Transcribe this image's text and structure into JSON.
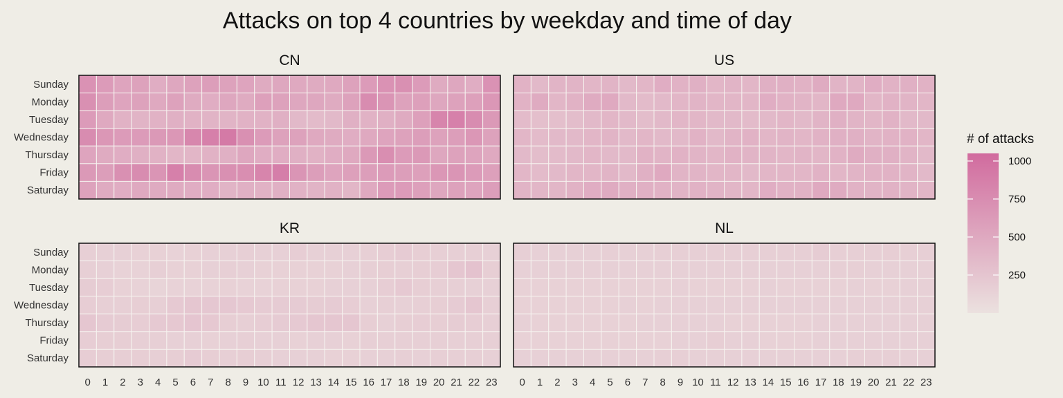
{
  "chart_data": {
    "type": "heatmap",
    "title": "Attacks on top 4 countries by weekday and time of day",
    "y_categories": [
      "Sunday",
      "Monday",
      "Tuesday",
      "Wednesday",
      "Thursday",
      "Friday",
      "Saturday"
    ],
    "x_categories": [
      "0",
      "1",
      "2",
      "3",
      "4",
      "5",
      "6",
      "7",
      "8",
      "9",
      "10",
      "11",
      "12",
      "13",
      "14",
      "15",
      "16",
      "17",
      "18",
      "19",
      "20",
      "21",
      "22",
      "23"
    ],
    "color_scale": {
      "title": "# of attacks",
      "ticks": [
        250,
        500,
        750,
        1000
      ],
      "tick_labels": [
        "250",
        "500",
        "750",
        "1000"
      ],
      "range": [
        0,
        1050
      ],
      "low_color": "#ebe1df",
      "high_color": "#d16b9e"
    },
    "panels": [
      {
        "name": "CN",
        "values": [
          [
            700,
            620,
            540,
            560,
            460,
            520,
            560,
            600,
            560,
            540,
            480,
            520,
            500,
            480,
            500,
            560,
            620,
            700,
            720,
            620,
            480,
            520,
            460,
            700
          ],
          [
            720,
            600,
            540,
            560,
            500,
            560,
            480,
            460,
            520,
            480,
            580,
            560,
            520,
            520,
            480,
            560,
            760,
            680,
            560,
            580,
            520,
            560,
            580,
            660
          ],
          [
            620,
            500,
            420,
            400,
            420,
            440,
            420,
            400,
            400,
            420,
            420,
            440,
            360,
            340,
            360,
            440,
            420,
            440,
            480,
            580,
            820,
            860,
            760,
            640
          ],
          [
            760,
            660,
            620,
            620,
            640,
            660,
            800,
            860,
            920,
            720,
            620,
            560,
            560,
            500,
            480,
            460,
            500,
            540,
            560,
            600,
            560,
            600,
            660,
            560
          ],
          [
            540,
            480,
            460,
            440,
            420,
            380,
            380,
            420,
            440,
            520,
            460,
            460,
            440,
            420,
            460,
            500,
            640,
            740,
            620,
            640,
            520,
            560,
            540,
            500
          ],
          [
            640,
            600,
            720,
            760,
            680,
            860,
            760,
            680,
            720,
            740,
            820,
            880,
            680,
            600,
            540,
            580,
            600,
            620,
            600,
            580,
            660,
            680,
            620,
            580
          ],
          [
            560,
            480,
            460,
            500,
            480,
            480,
            460,
            460,
            400,
            440,
            420,
            440,
            420,
            400,
            420,
            380,
            500,
            620,
            620,
            580,
            520,
            560,
            540,
            600
          ]
        ]
      },
      {
        "name": "US",
        "values": [
          [
            420,
            360,
            400,
            400,
            380,
            400,
            360,
            380,
            460,
            420,
            440,
            380,
            400,
            380,
            440,
            440,
            420,
            480,
            400,
            400,
            460,
            420,
            440,
            420
          ],
          [
            420,
            480,
            380,
            420,
            480,
            500,
            360,
            340,
            360,
            380,
            400,
            380,
            380,
            380,
            460,
            420,
            400,
            380,
            500,
            500,
            380,
            420,
            400,
            380
          ],
          [
            340,
            300,
            300,
            320,
            360,
            380,
            360,
            320,
            360,
            380,
            380,
            360,
            360,
            340,
            360,
            380,
            360,
            400,
            440,
            400,
            380,
            420,
            360,
            360
          ],
          [
            380,
            340,
            360,
            360,
            380,
            400,
            360,
            380,
            360,
            360,
            420,
            360,
            400,
            420,
            380,
            400,
            380,
            420,
            440,
            440,
            400,
            420,
            420,
            380
          ],
          [
            360,
            320,
            340,
            360,
            380,
            360,
            360,
            420,
            400,
            420,
            400,
            380,
            420,
            400,
            400,
            380,
            400,
            380,
            420,
            480,
            440,
            440,
            400,
            360
          ],
          [
            380,
            340,
            360,
            380,
            380,
            400,
            360,
            440,
            500,
            400,
            400,
            380,
            380,
            360,
            380,
            380,
            380,
            420,
            380,
            400,
            420,
            420,
            400,
            360
          ],
          [
            400,
            380,
            380,
            420,
            460,
            480,
            440,
            440,
            420,
            400,
            420,
            400,
            380,
            380,
            460,
            420,
            420,
            500,
            480,
            420,
            400,
            420,
            400,
            380
          ]
        ]
      },
      {
        "name": "KR",
        "values": [
          [
            160,
            150,
            150,
            140,
            140,
            130,
            140,
            150,
            150,
            160,
            150,
            150,
            180,
            150,
            150,
            150,
            160,
            180,
            200,
            170,
            160,
            160,
            160,
            150
          ],
          [
            160,
            150,
            130,
            130,
            160,
            140,
            140,
            150,
            160,
            150,
            140,
            140,
            140,
            140,
            140,
            150,
            160,
            170,
            160,
            170,
            180,
            240,
            280,
            170
          ],
          [
            190,
            180,
            140,
            130,
            120,
            130,
            130,
            130,
            140,
            130,
            130,
            140,
            140,
            140,
            150,
            150,
            150,
            180,
            210,
            170,
            160,
            160,
            150,
            150
          ],
          [
            180,
            160,
            160,
            170,
            160,
            210,
            240,
            230,
            230,
            210,
            200,
            200,
            200,
            190,
            200,
            180,
            150,
            160,
            150,
            160,
            170,
            200,
            240,
            160
          ],
          [
            240,
            200,
            190,
            180,
            210,
            220,
            250,
            220,
            170,
            160,
            180,
            200,
            210,
            240,
            240,
            240,
            170,
            150,
            170,
            180,
            170,
            190,
            180,
            160
          ],
          [
            180,
            170,
            170,
            160,
            160,
            150,
            150,
            140,
            150,
            160,
            150,
            150,
            140,
            150,
            150,
            140,
            160,
            160,
            160,
            160,
            160,
            160,
            160,
            160
          ],
          [
            180,
            170,
            170,
            170,
            160,
            170,
            200,
            170,
            160,
            170,
            160,
            150,
            150,
            150,
            140,
            140,
            150,
            150,
            160,
            150,
            160,
            160,
            160,
            150
          ]
        ]
      },
      {
        "name": "NL",
        "values": [
          [
            160,
            150,
            150,
            150,
            150,
            160,
            150,
            150,
            160,
            160,
            160,
            160,
            160,
            160,
            160,
            160,
            160,
            190,
            160,
            160,
            160,
            170,
            160,
            160
          ],
          [
            150,
            150,
            150,
            150,
            150,
            150,
            150,
            150,
            150,
            150,
            150,
            150,
            150,
            150,
            150,
            150,
            150,
            150,
            160,
            160,
            150,
            150,
            150,
            150
          ],
          [
            140,
            140,
            140,
            140,
            140,
            140,
            140,
            140,
            140,
            150,
            140,
            140,
            140,
            140,
            150,
            140,
            140,
            140,
            140,
            150,
            140,
            140,
            150,
            150
          ],
          [
            140,
            140,
            140,
            140,
            140,
            140,
            150,
            140,
            150,
            150,
            150,
            150,
            150,
            150,
            150,
            150,
            150,
            150,
            150,
            150,
            150,
            150,
            150,
            150
          ],
          [
            150,
            140,
            140,
            140,
            140,
            140,
            140,
            150,
            150,
            150,
            150,
            150,
            140,
            140,
            140,
            140,
            140,
            150,
            150,
            150,
            150,
            150,
            150,
            150
          ],
          [
            140,
            140,
            140,
            140,
            140,
            140,
            140,
            140,
            140,
            150,
            150,
            170,
            150,
            150,
            140,
            140,
            140,
            150,
            150,
            150,
            150,
            150,
            150,
            150
          ],
          [
            150,
            150,
            150,
            150,
            150,
            150,
            150,
            150,
            160,
            160,
            150,
            150,
            150,
            150,
            150,
            150,
            150,
            150,
            150,
            160,
            160,
            160,
            150,
            150
          ]
        ]
      }
    ]
  }
}
